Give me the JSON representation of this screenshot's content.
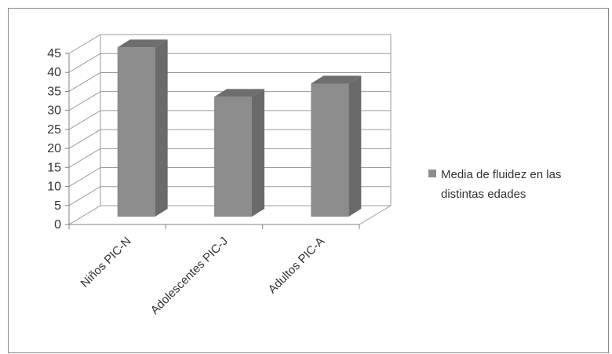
{
  "chart_data": {
    "type": "bar",
    "style": "3d-clustered-column",
    "categories": [
      "Niños PIC-N",
      "Adolescentes PIC-J",
      "Adultos PIC-A"
    ],
    "series": [
      {
        "name": "Media de fluidez en las distintas edades",
        "values": [
          44.5,
          31.5,
          35
        ],
        "color": "#8c8c8c"
      }
    ],
    "ylim": [
      0,
      45
    ],
    "ytick_step": 5,
    "yticks": [
      "0",
      "5",
      "10",
      "15",
      "20",
      "25",
      "30",
      "35",
      "40",
      "45"
    ],
    "grid": true,
    "legend": {
      "position": "right",
      "lines": [
        "Media de fluidez en las",
        "distintas edades"
      ]
    },
    "colors": {
      "bar_front": "#8c8c8c",
      "bar_top": "#6e6e6e",
      "bar_side": "#6a6a6a",
      "grid": "#9a9a9a",
      "axis": "#808080",
      "border": "#8a8a8a"
    }
  }
}
